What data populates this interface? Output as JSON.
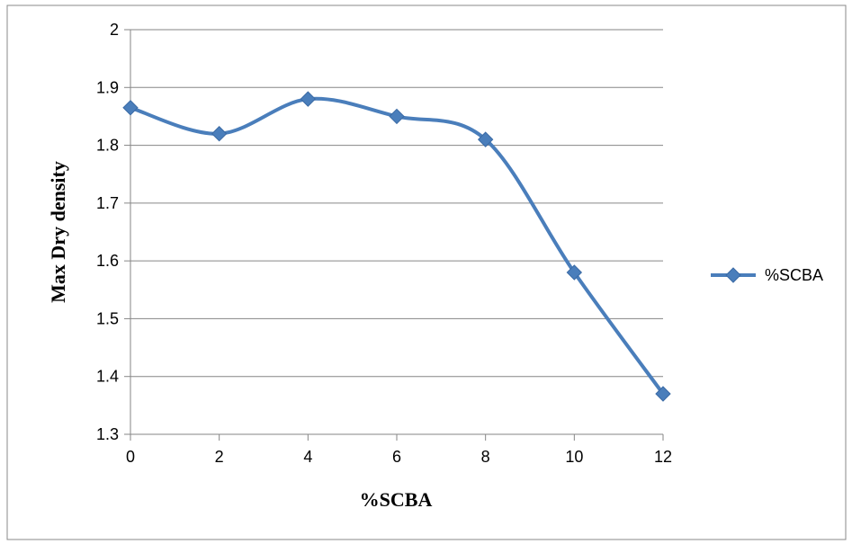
{
  "chart_data": {
    "type": "line",
    "title": "",
    "xlabel": "%SCBA",
    "ylabel": "Max Dry density",
    "x": [
      0,
      2,
      4,
      6,
      8,
      10,
      12
    ],
    "xlim": [
      0,
      12
    ],
    "x_ticks": [
      "0",
      "2",
      "4",
      "6",
      "8",
      "10",
      "12"
    ],
    "ylim": [
      1.3,
      2.0
    ],
    "y_ticks": [
      "1.3",
      "1.4",
      "1.5",
      "1.6",
      "1.7",
      "1.8",
      "1.9",
      "2"
    ],
    "grid": "horizontal",
    "smooth": true,
    "legend_position": "right",
    "series": [
      {
        "name": "%SCBA",
        "color": "#4a7ebb",
        "marker": "diamond",
        "values": [
          1.865,
          1.82,
          1.88,
          1.85,
          1.81,
          1.58,
          1.37
        ]
      }
    ]
  }
}
